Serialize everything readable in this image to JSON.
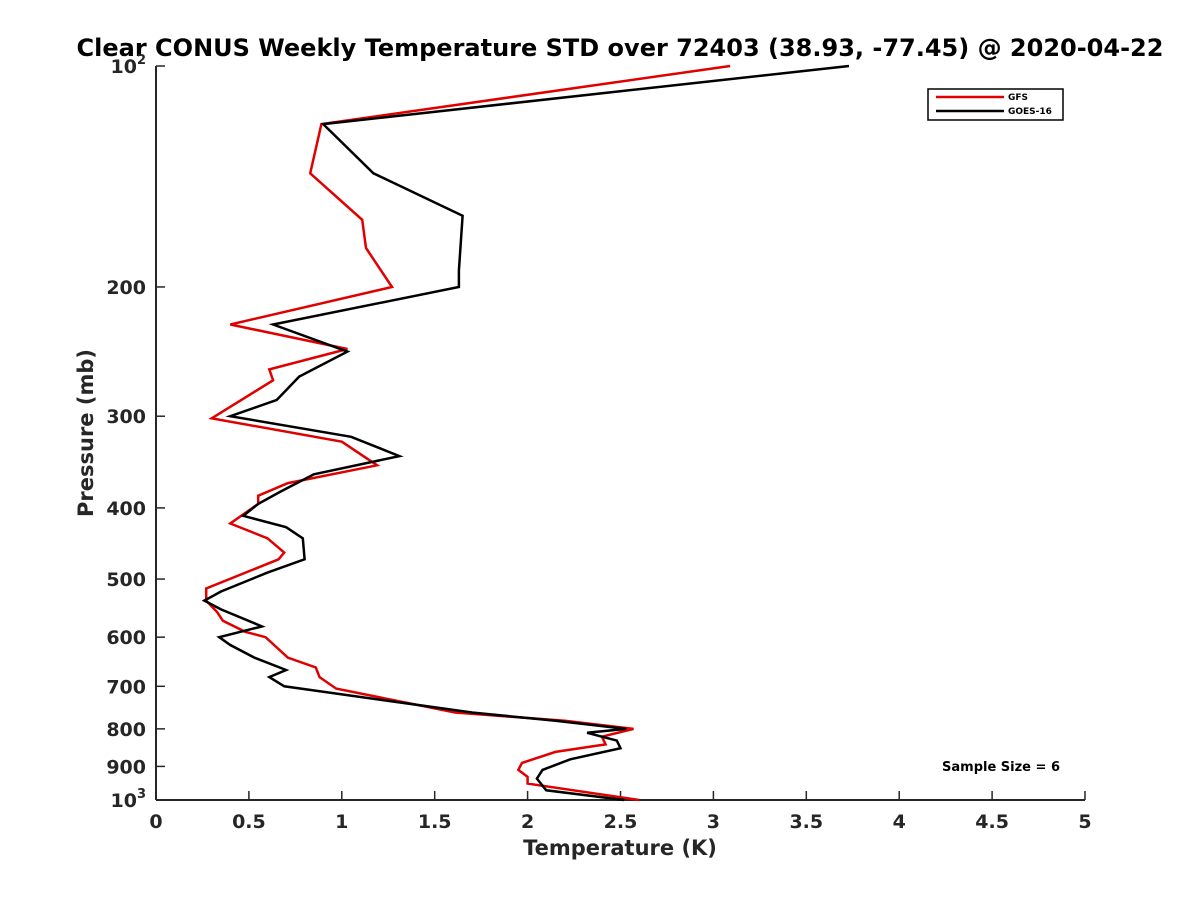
{
  "chart_data": {
    "type": "line",
    "title": "Clear CONUS Weekly Temperature STD over 72403 (38.93, -77.45) @ 2020-04-22",
    "xlabel": "Temperature (K)",
    "ylabel": "Pressure (mb)",
    "xlim": [
      0,
      5
    ],
    "ylim": [
      100,
      1000
    ],
    "yscale": "log",
    "y_reversed": true,
    "grid": false,
    "legend_position": "top-right",
    "x_ticks": [
      0,
      0.5,
      1,
      1.5,
      2,
      2.5,
      3,
      3.5,
      4,
      4.5,
      5
    ],
    "x_tick_labels": [
      "0",
      "0.5",
      "1",
      "1.5",
      "2",
      "2.5",
      "3",
      "3.5",
      "4",
      "4.5",
      "5"
    ],
    "y_ticks": [
      {
        "value": 100,
        "base": "10",
        "exp": "2"
      },
      {
        "value": 200,
        "label": "200"
      },
      {
        "value": 300,
        "label": "300"
      },
      {
        "value": 400,
        "label": "400"
      },
      {
        "value": 500,
        "label": "500"
      },
      {
        "value": 600,
        "label": "600"
      },
      {
        "value": 700,
        "label": "700"
      },
      {
        "value": 800,
        "label": "800"
      },
      {
        "value": 900,
        "label": "900"
      },
      {
        "value": 1000,
        "base": "10",
        "exp": "3"
      }
    ],
    "series": [
      {
        "name": "GFS",
        "color": "#e00000",
        "x": [
          3.09,
          0.89,
          0.83,
          1.11,
          1.13,
          1.27,
          0.4,
          1.03,
          0.61,
          0.63,
          0.3,
          1.0,
          1.19,
          0.71,
          0.55,
          0.55,
          0.4,
          0.6,
          0.69,
          0.66,
          0.27,
          0.27,
          0.33,
          0.36,
          0.48,
          0.59,
          0.71,
          0.86,
          0.88,
          0.97,
          1.61,
          2.2,
          2.57,
          2.4,
          2.42,
          2.15,
          1.97,
          1.95,
          2.0,
          2.0,
          2.6
        ],
        "y": [
          100,
          120,
          140,
          162,
          177,
          200,
          225,
          243,
          259,
          268,
          302,
          325,
          350,
          370,
          385,
          395,
          420,
          440,
          460,
          470,
          515,
          535,
          555,
          570,
          590,
          600,
          640,
          660,
          680,
          705,
          760,
          780,
          800,
          820,
          840,
          860,
          890,
          910,
          930,
          950,
          1000
        ]
      },
      {
        "name": "GOES-16",
        "color": "#000000",
        "x": [
          3.73,
          0.9,
          1.17,
          1.65,
          1.63,
          1.63,
          0.63,
          1.03,
          0.77,
          0.65,
          0.4,
          1.05,
          1.31,
          0.85,
          0.67,
          0.55,
          0.47,
          0.7,
          0.79,
          0.8,
          0.6,
          0.35,
          0.26,
          0.35,
          0.57,
          0.34,
          0.4,
          0.53,
          0.7,
          0.61,
          0.69,
          1.7,
          2.15,
          2.53,
          2.32,
          2.48,
          2.5,
          2.23,
          2.08,
          2.05,
          2.1,
          2.52
        ],
        "y": [
          100,
          120,
          140,
          160,
          190,
          200,
          225,
          245,
          265,
          285,
          300,
          320,
          340,
          360,
          380,
          395,
          410,
          425,
          440,
          470,
          490,
          520,
          535,
          550,
          580,
          600,
          615,
          640,
          665,
          680,
          700,
          760,
          780,
          800,
          810,
          830,
          850,
          880,
          910,
          935,
          970,
          1000
        ]
      }
    ],
    "annotation": "Sample Size = 6"
  }
}
